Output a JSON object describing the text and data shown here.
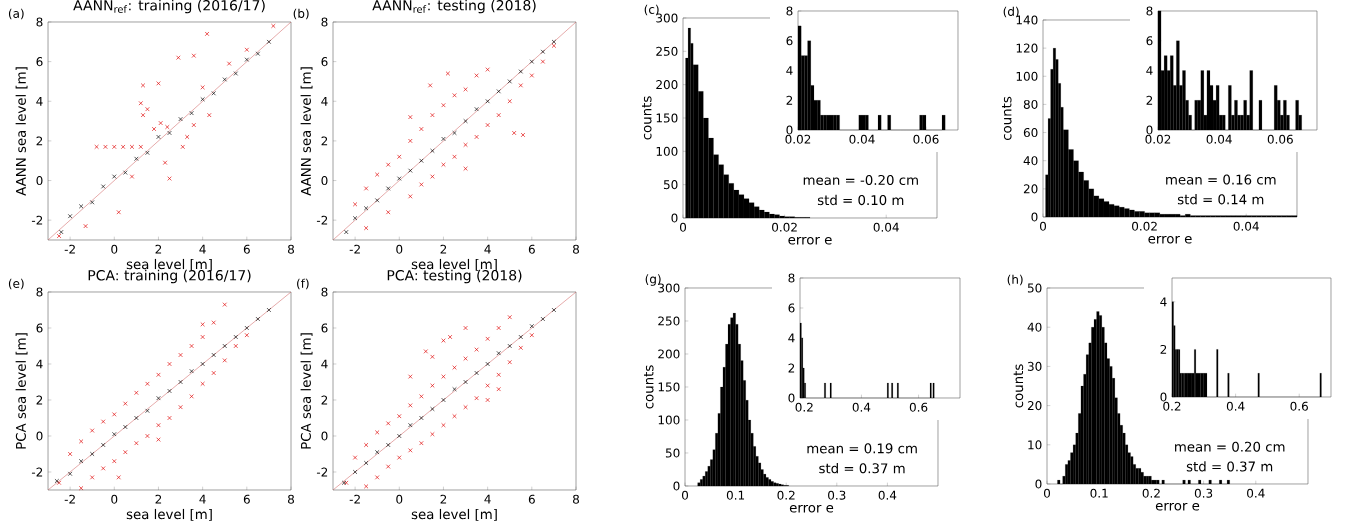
{
  "chart_data": [
    {
      "type": "scatter",
      "title": "AANN$_{ref}$: training (2016/17)",
      "xlabel": "sea level [m]",
      "ylabel": "AANN sea level [m]",
      "annotations": [
        "(a)"
      ],
      "marker": "cross",
      "xlim": [
        -3,
        8
      ],
      "ylim": [
        -3,
        8
      ],
      "xticks": [
        -2,
        0,
        2,
        4,
        6,
        8
      ],
      "yticks": [
        -2,
        0,
        2,
        4,
        6,
        8
      ],
      "series": [
        {
          "color": "#000000",
          "x": [
            -2.4,
            -2,
            -1.5,
            -1,
            -0.5,
            0,
            0.5,
            1,
            1.5,
            2,
            2.5,
            3,
            3.5,
            4,
            4.5,
            5,
            5.5,
            6,
            6.5,
            7
          ],
          "values": [
            -2.6,
            -1.8,
            -1.3,
            -1.1,
            -0.3,
            0.2,
            0.4,
            1.1,
            1.4,
            2.2,
            2.4,
            3.1,
            3.4,
            4.1,
            4.4,
            5.1,
            5.4,
            6.1,
            6.4,
            7.0
          ]
        },
        {
          "color": "#e00000",
          "x": [
            -0.8,
            -0.4,
            0,
            0.4,
            0.8,
            1.2,
            1.3,
            2,
            1.2,
            1.5,
            1.3,
            2.9,
            3.6,
            4.2,
            7.2,
            2.3,
            2.5,
            0.2,
            -1.3,
            3.1,
            3.3,
            4.3,
            1.8,
            2.1,
            2.4,
            0.8,
            -2.5,
            5.2,
            6,
            4,
            3.6
          ],
          "values": [
            1.7,
            1.7,
            1.7,
            1.7,
            1.7,
            1.7,
            4.8,
            4.9,
            3.9,
            3.6,
            3.3,
            6.2,
            6.3,
            7.4,
            7.8,
            0.9,
            0.1,
            -1.6,
            -2.3,
            1.7,
            2.2,
            3.3,
            2.6,
            2.9,
            2.7,
            0.2,
            -2.8,
            5.9,
            6.6,
            4.7,
            2.8
          ]
        },
        {
          "type": "line",
          "marker": "none",
          "color": "#d06060",
          "x": [
            -3,
            8
          ],
          "values": [
            -3,
            8
          ]
        }
      ]
    },
    {
      "type": "scatter",
      "title": "AANN$_{ref}$: testing (2018)",
      "xlabel": "sea level [m]",
      "ylabel": "AANN sea level [m]",
      "annotations": [
        "(b)"
      ],
      "marker": "cross",
      "xlim": [
        -3,
        8
      ],
      "ylim": [
        -3,
        8
      ],
      "xticks": [
        -2,
        0,
        2,
        4,
        6,
        8
      ],
      "yticks": [
        -2,
        0,
        2,
        4,
        6,
        8
      ],
      "series": [
        {
          "color": "#e00000",
          "x": [
            -2,
            -1.5,
            -1,
            -0.5,
            0,
            0.5,
            1,
            1.5,
            2,
            2.5,
            3,
            3.5,
            4,
            -1.5,
            -0.5,
            0.5,
            1,
            1.5,
            2,
            2.5,
            3,
            3.5,
            4,
            4.5,
            5,
            5.5,
            6,
            1.4,
            2.2,
            5.2,
            5.6,
            6.5,
            7,
            0.5,
            3
          ],
          "values": [
            -1.2,
            -0.4,
            0.3,
            0.8,
            1.2,
            2,
            2.6,
            3.3,
            3.8,
            4.3,
            4.6,
            5.3,
            5.6,
            -2.4,
            -1.6,
            -0.8,
            -0.2,
            0.2,
            0.8,
            1.2,
            1.8,
            2.2,
            2.8,
            3.3,
            4,
            4.8,
            5.3,
            4.8,
            5.4,
            2.4,
            2.3,
            6,
            6.8,
            3.2,
            0.6
          ]
        },
        {
          "color": "#000000",
          "x": [
            -2.4,
            -2,
            -1.5,
            -1,
            -0.5,
            0,
            0.5,
            1,
            1.5,
            2,
            2.5,
            3,
            3.5,
            4,
            4.5,
            5,
            5.5,
            6,
            6.5,
            7
          ],
          "values": [
            -2.6,
            -1.9,
            -1.4,
            -1.0,
            -0.4,
            0.1,
            0.5,
            1.0,
            1.5,
            2.1,
            2.4,
            3.0,
            3.6,
            4.0,
            4.5,
            5.0,
            5.5,
            6.0,
            6.5,
            7.0
          ]
        },
        {
          "type": "line",
          "marker": "none",
          "color": "#d06060",
          "x": [
            -3,
            8
          ],
          "values": [
            -3,
            8
          ]
        }
      ]
    },
    {
      "type": "histogram",
      "xlabel": "error e",
      "ylabel": "counts",
      "annotations": [
        "(c)",
        "mean = -0.20 cm",
        "std  = 0.10 m"
      ],
      "color": "#000000",
      "xlim": [
        0,
        0.05
      ],
      "ylim": [
        0,
        300
      ],
      "xticks": [
        0,
        0.02,
        0.04
      ],
      "yticks": [
        0,
        50,
        100,
        150,
        200,
        250,
        300
      ],
      "bins": [
        0.0005,
        0.001,
        0.0015,
        0.002,
        0.003,
        0.004,
        0.005,
        0.006,
        0.007,
        0.008,
        0.009,
        0.01,
        0.011,
        0.012,
        0.013,
        0.014,
        0.015,
        0.016,
        0.017,
        0.018,
        0.019,
        0.02,
        0.021,
        0.022,
        0.023,
        0.024,
        0.025
      ],
      "values": [
        240,
        285,
        262,
        230,
        190,
        150,
        120,
        95,
        80,
        65,
        52,
        42,
        35,
        29,
        23,
        17,
        12,
        9,
        6,
        5,
        3,
        2,
        2,
        1,
        1,
        1
      ]
    },
    {
      "type": "histogram",
      "color": "#000000",
      "xlim": [
        0.02,
        0.07
      ],
      "ylim": [
        0,
        8
      ],
      "xticks": [
        0.02,
        0.04,
        0.06
      ],
      "yticks": [
        0,
        2,
        4,
        6,
        8
      ],
      "bins": [
        0.02,
        0.021,
        0.022,
        0.023,
        0.024,
        0.025,
        0.026,
        0.027,
        0.028,
        0.029,
        0.03,
        0.031,
        0.032,
        0.033,
        0.034,
        0.035,
        0.036,
        0.037,
        0.038,
        0.039,
        0.04,
        0.041,
        0.042,
        0.043,
        0.044,
        0.045,
        0.046,
        0.047,
        0.048,
        0.049,
        0.05,
        0.051,
        0.052,
        0.053,
        0.054,
        0.055,
        0.056,
        0.057,
        0.058,
        0.059,
        0.06,
        0.061,
        0.062,
        0.063,
        0.064,
        0.065,
        0.066
      ],
      "values": [
        7,
        5,
        5,
        6,
        3,
        2,
        2,
        1,
        1,
        1,
        1,
        1,
        1,
        0,
        0,
        0,
        0,
        0,
        0,
        1,
        1,
        1,
        0,
        0,
        0,
        1,
        0,
        0,
        1,
        0,
        0,
        0,
        0,
        0,
        0,
        0,
        0,
        0,
        1,
        1,
        0,
        0,
        0,
        0,
        0,
        1
      ]
    },
    {
      "type": "histogram",
      "xlabel": "error e",
      "ylabel": "counts",
      "annotations": [
        "(d)",
        "mean = 0.16 cm",
        "std  = 0.14 m"
      ],
      "color": "#000000",
      "xlim": [
        0,
        0.05
      ],
      "ylim": [
        0,
        140
      ],
      "xticks": [
        0,
        0.02,
        0.04
      ],
      "yticks": [
        0,
        20,
        40,
        60,
        80,
        100,
        120,
        140
      ],
      "bins": [
        0.0005,
        0.001,
        0.0015,
        0.002,
        0.0025,
        0.003,
        0.0035,
        0.004,
        0.005,
        0.006,
        0.007,
        0.008,
        0.009,
        0.01,
        0.011,
        0.012,
        0.013,
        0.014,
        0.015,
        0.016,
        0.017,
        0.018,
        0.019,
        0.02,
        0.021,
        0.022,
        0.023,
        0.024,
        0.025,
        0.026,
        0.027,
        0.028,
        0.029,
        0.03,
        0.031,
        0.032,
        0.033,
        0.034,
        0.035,
        0.036,
        0.037,
        0.038,
        0.039,
        0.04,
        0.041,
        0.042,
        0.043,
        0.044,
        0.045,
        0.046,
        0.047,
        0.048,
        0.049,
        0.05
      ],
      "values": [
        30,
        70,
        105,
        120,
        112,
        95,
        78,
        62,
        48,
        40,
        32,
        26,
        20,
        15,
        13,
        11,
        9,
        8,
        7,
        6,
        5,
        4,
        4,
        3,
        3,
        3,
        2,
        2,
        2,
        2,
        1,
        2,
        1,
        1,
        1,
        1,
        1,
        1,
        1,
        1,
        1,
        1,
        1,
        1,
        1,
        1,
        1,
        1,
        1,
        1,
        1,
        1,
        1
      ]
    },
    {
      "type": "histogram",
      "color": "#000000",
      "xlim": [
        0.02,
        0.072
      ],
      "ylim": [
        0,
        8
      ],
      "xticks": [
        0.02,
        0.04,
        0.06
      ],
      "yticks": [
        0,
        2,
        4,
        6,
        8
      ],
      "bins": [
        0.02,
        0.021,
        0.022,
        0.023,
        0.024,
        0.025,
        0.026,
        0.027,
        0.028,
        0.029,
        0.03,
        0.031,
        0.032,
        0.033,
        0.034,
        0.035,
        0.036,
        0.037,
        0.038,
        0.039,
        0.04,
        0.041,
        0.042,
        0.043,
        0.044,
        0.045,
        0.046,
        0.047,
        0.048,
        0.049,
        0.05,
        0.051,
        0.052,
        0.053,
        0.054,
        0.055,
        0.056,
        0.057,
        0.058,
        0.059,
        0.06,
        0.061,
        0.062,
        0.063,
        0.064,
        0.065,
        0.066,
        0.067
      ],
      "values": [
        8,
        4,
        5,
        4,
        5,
        3,
        6,
        3,
        4,
        2,
        1,
        0,
        2,
        2,
        4,
        1,
        4,
        3,
        2,
        3,
        1,
        1,
        0,
        3,
        1,
        2,
        1,
        1,
        2,
        1,
        4,
        0,
        0,
        2,
        0,
        0,
        0,
        0,
        3,
        2,
        1,
        2,
        1,
        0,
        0,
        2,
        1
      ]
    },
    {
      "type": "scatter",
      "title": "PCA: training (2016/17)",
      "xlabel": "sea level [m]",
      "ylabel": "PCA sea level [m]",
      "annotations": [
        "(e)"
      ],
      "marker": "cross",
      "xlim": [
        -3,
        8
      ],
      "ylim": [
        -3,
        8
      ],
      "xticks": [
        -2,
        0,
        2,
        4,
        6,
        8
      ],
      "yticks": [
        -2,
        0,
        2,
        4,
        6,
        8
      ],
      "series": [
        {
          "color": "#e00000",
          "x": [
            -2.5,
            -2,
            -1.5,
            -1,
            -0.5,
            0,
            0.5,
            1,
            1.5,
            2,
            2.5,
            3,
            3.5,
            4,
            4.5,
            5,
            4,
            -1.5,
            -1,
            -0.5,
            0,
            0.5,
            1,
            1.5,
            2,
            2.5,
            3,
            3.5,
            4,
            4.5,
            5,
            5.5,
            6,
            0.2,
            2
          ],
          "values": [
            -2.6,
            -1,
            -0.3,
            0.3,
            0.8,
            1.2,
            1.8,
            2.4,
            2.9,
            3.4,
            4,
            4.5,
            5,
            5.5,
            6.3,
            7.3,
            6.2,
            -2.9,
            -2.3,
            -1.8,
            -1.4,
            -0.9,
            -0.4,
            0,
            0.6,
            1,
            1.6,
            2.2,
            2.9,
            3.5,
            4.2,
            5,
            5.6,
            -2.3,
            -0.2
          ]
        },
        {
          "color": "#000000",
          "x": [
            -2.6,
            -2,
            -1.5,
            -1,
            -0.5,
            0,
            0.5,
            1,
            1.5,
            2,
            2.5,
            3,
            3.5,
            4,
            4.5,
            5,
            5.5,
            6,
            6.5,
            7
          ],
          "values": [
            -2.5,
            -2.1,
            -1.4,
            -1.0,
            -0.5,
            0.1,
            0.5,
            1.0,
            1.4,
            2.1,
            2.5,
            3.0,
            3.6,
            4.0,
            4.5,
            5.0,
            5.5,
            6.0,
            6.5,
            7.0
          ]
        },
        {
          "type": "line",
          "marker": "none",
          "color": "#d06060",
          "x": [
            -3,
            8
          ],
          "values": [
            -3,
            8
          ]
        }
      ]
    },
    {
      "type": "scatter",
      "title": "PCA: testing (2018)",
      "xlabel": "sea level [m]",
      "ylabel": "PCA sea level [m]",
      "annotations": [
        "(f)"
      ],
      "marker": "cross",
      "xlim": [
        -3,
        8
      ],
      "ylim": [
        -3,
        8
      ],
      "xticks": [
        -2,
        0,
        2,
        4,
        6,
        8
      ],
      "yticks": [
        -2,
        0,
        2,
        4,
        6,
        8
      ],
      "series": [
        {
          "color": "#e00000",
          "x": [
            -2.4,
            -2,
            -1.5,
            -1,
            -0.5,
            0,
            0.5,
            1,
            1.5,
            2,
            2.5,
            3,
            3.5,
            4,
            4.5,
            5,
            -1.5,
            -1,
            -0.5,
            0,
            0.5,
            1,
            1.5,
            2,
            2.5,
            3,
            3.5,
            4,
            4.5,
            5,
            5.5,
            6,
            1.2,
            2,
            2.3,
            3,
            0.5,
            1.5,
            4,
            4.5
          ],
          "values": [
            -2.6,
            -1.2,
            -0.5,
            0.2,
            0.7,
            1.1,
            1.7,
            2.2,
            2.8,
            3.3,
            3.8,
            4.3,
            4.8,
            5.4,
            6,
            6.6,
            -2.8,
            -2.3,
            -1.7,
            -1.2,
            -0.8,
            -0.4,
            0.1,
            0.6,
            1.1,
            1.6,
            2.1,
            2.8,
            3.4,
            4.1,
            4.9,
            5.6,
            4.7,
            5.3,
            5.5,
            6,
            3.3,
            4.4,
            2,
            2.6
          ]
        },
        {
          "color": "#000000",
          "x": [
            -2.5,
            -2,
            -1.5,
            -1,
            -0.5,
            0,
            0.5,
            1,
            1.5,
            2,
            2.5,
            3,
            3.5,
            4,
            4.5,
            5,
            5.5,
            6,
            6.5,
            7
          ],
          "values": [
            -2.6,
            -2.0,
            -1.5,
            -0.9,
            -0.5,
            0.0,
            0.6,
            1.0,
            1.5,
            2.0,
            2.6,
            3.0,
            3.5,
            4.0,
            4.6,
            5.0,
            5.5,
            6.1,
            6.5,
            7.0
          ]
        },
        {
          "type": "line",
          "marker": "none",
          "color": "#d06060",
          "x": [
            -3,
            8
          ],
          "values": [
            -3,
            8
          ]
        }
      ]
    },
    {
      "type": "histogram",
      "xlabel": "error e",
      "ylabel": "counts",
      "annotations": [
        "(g)",
        "mean = 0.19 cm",
        "std  = 0.37 m"
      ],
      "color": "#000000",
      "xlim": [
        0,
        0.5
      ],
      "ylim": [
        0,
        300
      ],
      "xticks": [
        0,
        0.1,
        0.2,
        0.3,
        0.4
      ],
      "yticks": [
        0,
        50,
        100,
        150,
        200,
        250,
        300
      ],
      "bins": [
        0.025,
        0.03,
        0.035,
        0.04,
        0.045,
        0.05,
        0.055,
        0.06,
        0.065,
        0.07,
        0.075,
        0.08,
        0.085,
        0.09,
        0.095,
        0.1,
        0.105,
        0.11,
        0.115,
        0.12,
        0.125,
        0.13,
        0.135,
        0.14,
        0.145,
        0.15,
        0.155,
        0.16,
        0.165,
        0.17,
        0.175,
        0.18,
        0.185,
        0.19,
        0.195,
        0.2,
        0.205
      ],
      "values": [
        5,
        10,
        15,
        22,
        30,
        40,
        55,
        80,
        110,
        150,
        180,
        215,
        245,
        255,
        262,
        245,
        215,
        190,
        160,
        130,
        100,
        80,
        60,
        45,
        35,
        25,
        18,
        13,
        10,
        7,
        5,
        4,
        3,
        2,
        1,
        1
      ]
    },
    {
      "type": "histogram",
      "color": "#000000",
      "xlim": [
        0.185,
        0.745
      ],
      "ylim": [
        0,
        8
      ],
      "xticks": [
        0.2,
        0.4,
        0.6
      ],
      "yticks": [
        0,
        2,
        4,
        6,
        8
      ],
      "bins": [
        0.185,
        0.19,
        0.195,
        0.2,
        0.205,
        0.27,
        0.275,
        0.29,
        0.295,
        0.49,
        0.495,
        0.505,
        0.51,
        0.525,
        0.53,
        0.64,
        0.645,
        0.65,
        0.655
      ],
      "values": [
        5,
        4,
        2,
        1,
        0,
        1,
        0,
        1,
        0,
        1,
        0,
        1,
        0,
        1,
        0,
        1,
        0,
        1
      ]
    },
    {
      "type": "histogram",
      "xlabel": "error e",
      "ylabel": "counts",
      "annotations": [
        "(h)",
        "mean = 0.20 cm",
        "std  = 0.37 m"
      ],
      "color": "#000000",
      "xlim": [
        0,
        0.5
      ],
      "ylim": [
        0,
        50
      ],
      "xticks": [
        0,
        0.1,
        0.2,
        0.3,
        0.4
      ],
      "yticks": [
        0,
        10,
        20,
        30,
        40,
        50
      ],
      "bins": [
        0.02,
        0.025,
        0.03,
        0.035,
        0.04,
        0.045,
        0.05,
        0.055,
        0.06,
        0.065,
        0.07,
        0.075,
        0.08,
        0.085,
        0.09,
        0.095,
        0.1,
        0.105,
        0.11,
        0.115,
        0.12,
        0.125,
        0.13,
        0.135,
        0.14,
        0.145,
        0.15,
        0.155,
        0.16,
        0.165,
        0.17,
        0.175,
        0.18,
        0.185,
        0.19,
        0.195,
        0.2,
        0.205,
        0.21,
        0.215,
        0.22,
        0.225,
        0.26,
        0.265,
        0.27,
        0.275,
        0.29,
        0.295,
        0.31,
        0.315,
        0.33,
        0.335,
        0.345,
        0.35
      ],
      "values": [
        1,
        0,
        2,
        5,
        6,
        8,
        10,
        13,
        18,
        25,
        28,
        33,
        36,
        40,
        42,
        44,
        43,
        40,
        36,
        32,
        30,
        27,
        22,
        18,
        15,
        13,
        10,
        8,
        7,
        5,
        4,
        4,
        3,
        2,
        2,
        2,
        1,
        1,
        1,
        0,
        1,
        0,
        1,
        0,
        1,
        0,
        1,
        0,
        1,
        0,
        1,
        0,
        1
      ]
    },
    {
      "type": "histogram",
      "color": "#000000",
      "xlim": [
        0.2,
        0.7
      ],
      "ylim": [
        0,
        5
      ],
      "xticks": [
        0.2,
        0.4,
        0.6
      ],
      "yticks": [
        0,
        2,
        4
      ],
      "bins": [
        0.2,
        0.205,
        0.21,
        0.215,
        0.22,
        0.225,
        0.23,
        0.235,
        0.24,
        0.25,
        0.26,
        0.27,
        0.275,
        0.29,
        0.3,
        0.31,
        0.34,
        0.345,
        0.375,
        0.38,
        0.47,
        0.475,
        0.665,
        0.67
      ],
      "values": [
        4,
        3,
        2,
        2,
        2,
        1,
        1,
        1,
        1,
        1,
        1,
        2,
        1,
        1,
        1,
        0,
        2,
        0,
        1,
        0,
        1,
        0,
        1
      ]
    }
  ]
}
